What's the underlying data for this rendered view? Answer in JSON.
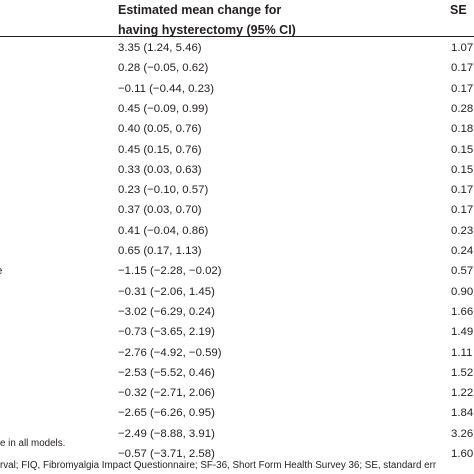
{
  "table": {
    "header_estimate_line1": "Estimated mean change for",
    "header_estimate_line2": "having hysterectomy (95% CI)",
    "header_se": "SE",
    "rows": [
      {
        "label": "",
        "estimate": "3.35 (1.24, 5.46)",
        "se": "1.07"
      },
      {
        "label": "",
        "estimate": "0.28 (−0.05, 0.62)",
        "se": "0.17"
      },
      {
        "label": "",
        "estimate": "−0.11 (−0.44, 0.23)",
        "se": "0.17"
      },
      {
        "label": "",
        "estimate": "0.45 (−0.09, 0.99)",
        "se": "0.28"
      },
      {
        "label": "",
        "estimate": "0.40 (0.05, 0.76)",
        "se": "0.18"
      },
      {
        "label": "",
        "estimate": "0.45 (0.15, 0.76)",
        "se": "0.15"
      },
      {
        "label": "",
        "estimate": "0.33 (0.03, 0.63)",
        "se": "0.15"
      },
      {
        "label": "",
        "estimate": "0.23 (−0.10, 0.57)",
        "se": "0.17"
      },
      {
        "label": "",
        "estimate": "0.37 (0.03, 0.70)",
        "se": "0.17"
      },
      {
        "label": "",
        "estimate": "0.41 (−0.04, 0.86)",
        "se": "0.23"
      },
      {
        "label": "",
        "estimate": "0.65 (0.17, 1.13)",
        "se": "0.24"
      },
      {
        "label": "e",
        "estimate": "−1.15 (−2.28, −0.02)",
        "se": "0.57"
      },
      {
        "label": "",
        "estimate": "−0.31 (−2.06, 1.45)",
        "se": "0.90"
      },
      {
        "label": "",
        "estimate": "−3.02 (−6.29, 0.24)",
        "se": "1.66"
      },
      {
        "label": "",
        "estimate": "−0.73 (−3.65, 2.19)",
        "se": "1.49"
      },
      {
        "label": "",
        "estimate": "−2.76 (−4.92, −0.59)",
        "se": "1.11"
      },
      {
        "label": "",
        "estimate": "−2.53 (−5.52, 0.46)",
        "se": "1.52"
      },
      {
        "label": "",
        "estimate": "−0.32 (−2.71, 2.06)",
        "se": "1.22"
      },
      {
        "label": "",
        "estimate": "−2.65 (−6.26, 0.95)",
        "se": "1.84"
      },
      {
        "label": "",
        "estimate": "−2.49 (−8.88, 3.91)",
        "se": "3.26"
      },
      {
        "label": "",
        "estimate": "−0.57 (−3.71, 2.58)",
        "se": "1.60"
      }
    ]
  },
  "footnotes": {
    "line1": "e in all models.",
    "line2": "rval; FIQ, Fibromyalgia Impact Questionnaire; SF-36, Short Form Health Survey 36; SE, standard err"
  }
}
